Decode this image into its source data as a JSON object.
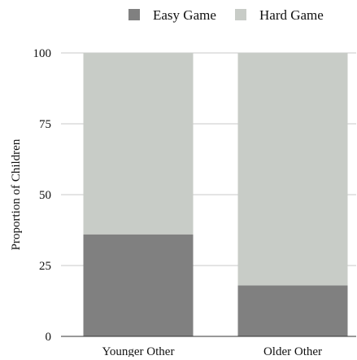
{
  "chart_data": {
    "type": "bar",
    "stacked": true,
    "categories": [
      "Younger Other",
      "Older Other"
    ],
    "series": [
      {
        "name": "Easy Game",
        "values": [
          36,
          18
        ],
        "color": "#808080"
      },
      {
        "name": "Hard Game",
        "values": [
          64,
          82
        ],
        "color": "#c8ccc7"
      }
    ],
    "title": "",
    "xlabel": "",
    "ylabel": "Proportion of Children",
    "ylim": [
      0,
      100
    ],
    "yticks": [
      0,
      25,
      50,
      75,
      100
    ],
    "grid": true,
    "legend_position": "top"
  }
}
